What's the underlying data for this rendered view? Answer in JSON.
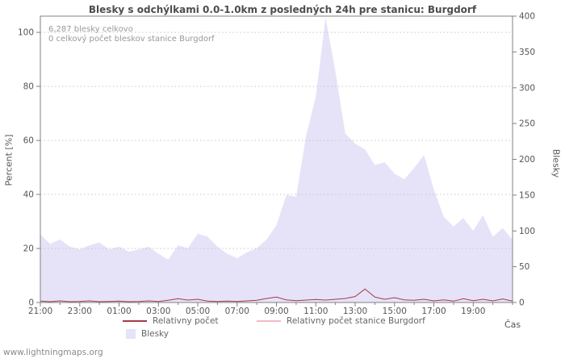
{
  "page": {
    "watermark": "www.lightningmaps.org"
  },
  "chart": {
    "title": "Blesky s odchýlkami 0.0-1.0km z posledných 24h pre stanicu: Burgdorf",
    "annotations": {
      "total": "6,287 blesky celkovo",
      "station": "0 celkový počet bleskov stanice Burgdorf"
    },
    "axis_labels": {
      "y_left": "Percent  [%]",
      "y_right": "Blesky",
      "x": "Čas"
    },
    "legend": [
      {
        "label": "Relativny počet",
        "swatch": "line",
        "color": "#a43a4a"
      },
      {
        "label": "Relativny počet stanice Burgdorf",
        "swatch": "line",
        "color": "#f3b9c3"
      },
      {
        "label": "Blesky",
        "swatch": "area",
        "color": "#e6e3f8"
      }
    ],
    "colors": {
      "area": "#e6e3f8",
      "line_relative": "#a43a4a",
      "line_station": "#f3b9c3",
      "grid": "#c6c6c6",
      "frame": "#808080",
      "tick": "#808080"
    }
  },
  "chart_data": {
    "type": "area",
    "title": "Blesky s odchýlkami 0.0-1.0km z posledných 24h pre stanicu: Burgdorf",
    "x_unit": "hours after 21:00",
    "x_range": [
      0,
      24
    ],
    "x_ticks": {
      "hours": [
        0,
        2,
        4,
        6,
        8,
        10,
        12,
        14,
        16,
        18,
        20,
        22
      ],
      "labels": [
        "21:00",
        "23:00",
        "01:00",
        "03:00",
        "05:00",
        "07:00",
        "09:00",
        "11:00",
        "13:00",
        "15:00",
        "17:00",
        "19:00"
      ]
    },
    "y_left": {
      "label": "Percent [%]",
      "ticks": [
        0,
        20,
        40,
        60,
        80,
        100
      ],
      "plot_max": 106
    },
    "y_right": {
      "label": "Blesky",
      "ticks": [
        0,
        50,
        100,
        150,
        200,
        250,
        300,
        350,
        400
      ],
      "max": 400
    },
    "x_hours": [
      0,
      0.5,
      1,
      1.5,
      2,
      2.5,
      3,
      3.5,
      4,
      4.5,
      5,
      5.5,
      6,
      6.5,
      7,
      7.5,
      8,
      8.5,
      9,
      9.5,
      10,
      10.5,
      11,
      11.5,
      12,
      12.5,
      13,
      13.5,
      14,
      14.5,
      15,
      15.5,
      16,
      16.5,
      17,
      17.5,
      18,
      18.5,
      19,
      19.5,
      20,
      20.5,
      21,
      21.5,
      22,
      22.5,
      23,
      23.5,
      24
    ],
    "series": [
      {
        "name": "Blesky",
        "type": "area",
        "axis": "right",
        "color": "#e6e3f8",
        "values": [
          95,
          82,
          88,
          78,
          74,
          80,
          84,
          74,
          78,
          71,
          74,
          78,
          68,
          60,
          80,
          76,
          96,
          92,
          78,
          68,
          62,
          70,
          76,
          88,
          108,
          150,
          148,
          232,
          288,
          398,
          322,
          236,
          222,
          214,
          192,
          196,
          180,
          172,
          188,
          206,
          158,
          120,
          106,
          118,
          100,
          122,
          92,
          104,
          88
        ]
      },
      {
        "name": "Relativny počet",
        "type": "line",
        "axis": "left",
        "color": "#a43a4a",
        "values": [
          0.5,
          0.3,
          0.6,
          0.3,
          0.4,
          0.6,
          0.3,
          0.4,
          0.5,
          0.3,
          0.4,
          0.6,
          0.4,
          0.8,
          1.4,
          0.9,
          1.2,
          0.5,
          0.4,
          0.5,
          0.4,
          0.6,
          0.8,
          1.5,
          2.0,
          1.0,
          0.7,
          0.9,
          1.1,
          0.9,
          1.2,
          1.5,
          2.2,
          5.0,
          2.0,
          1.2,
          1.8,
          1.0,
          0.8,
          1.2,
          0.6,
          1.0,
          0.5,
          1.4,
          0.7,
          1.2,
          0.6,
          1.3,
          0.5
        ]
      },
      {
        "name": "Relativny počet stanice Burgdorf",
        "type": "line",
        "axis": "left",
        "color": "#f3b9c3",
        "x": [
          0,
          24
        ],
        "values": [
          0,
          0
        ]
      }
    ],
    "totals": {
      "blesky_celkovo": 6287,
      "stanica_burgdorf": 0
    }
  }
}
